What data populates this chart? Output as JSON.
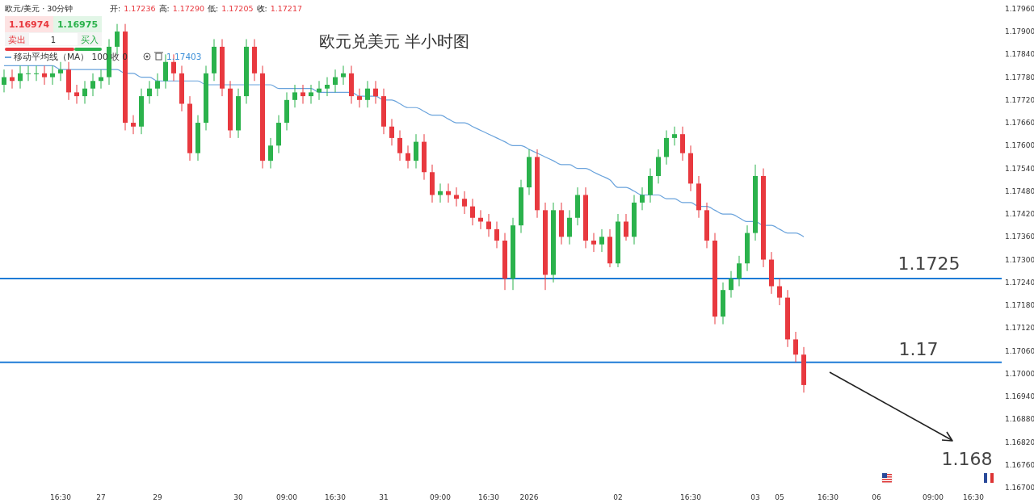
{
  "chart_data": {
    "type": "candlestick",
    "title": "欧元兑美元 半小时图",
    "categories": [
      null,
      null,
      null,
      null,
      null,
      null,
      null,
      "16:30",
      null,
      null,
      null,
      null,
      "27",
      null,
      null,
      null,
      null,
      null,
      null,
      "29",
      null,
      null,
      null,
      null,
      null,
      null,
      null,
      null,
      null,
      "30",
      null,
      null,
      null,
      null,
      null,
      "09:00",
      null,
      null,
      null,
      null,
      null,
      "16:30",
      null,
      null,
      null,
      null,
      null,
      "31",
      null,
      null,
      null,
      null,
      null,
      null,
      "09:00",
      null,
      null,
      null,
      null,
      null,
      "16:30",
      null,
      null,
      null,
      null,
      "2026",
      null,
      null,
      null,
      null,
      null,
      null,
      null,
      null,
      null,
      null,
      "02",
      null,
      null,
      null,
      null,
      null,
      null,
      null,
      null,
      "16:30",
      null,
      null,
      null,
      null,
      null,
      null,
      null,
      "03",
      null,
      null,
      "05",
      null,
      null,
      null,
      null,
      null,
      "16:30",
      null,
      null,
      null,
      null,
      null,
      "06",
      null,
      null,
      null,
      null,
      null,
      null,
      "09:00",
      null,
      null,
      null,
      null,
      "16:30",
      null,
      null,
      null
    ],
    "ohlc": [
      [
        1.1776,
        1.178,
        1.1774,
        1.1778
      ],
      [
        1.1778,
        1.178,
        1.1775,
        1.1777
      ],
      [
        1.1777,
        1.1781,
        1.1775,
        1.1779
      ],
      [
        1.1779,
        1.1781,
        1.1777,
        1.1779
      ],
      [
        1.1779,
        1.1781,
        1.1777,
        1.1779
      ],
      [
        1.1779,
        1.1781,
        1.1776,
        1.1778
      ],
      [
        1.1778,
        1.1781,
        1.1776,
        1.1779
      ],
      [
        1.1779,
        1.1782,
        1.1777,
        1.178
      ],
      [
        1.178,
        1.1782,
        1.1772,
        1.1774
      ],
      [
        1.1774,
        1.1776,
        1.1771,
        1.1773
      ],
      [
        1.1773,
        1.1777,
        1.1771,
        1.1775
      ],
      [
        1.1775,
        1.1779,
        1.1773,
        1.1777
      ],
      [
        1.1777,
        1.178,
        1.1775,
        1.1778
      ],
      [
        1.1778,
        1.1788,
        1.1776,
        1.1786
      ],
      [
        1.1786,
        1.1792,
        1.1784,
        1.179
      ],
      [
        1.179,
        1.1792,
        1.1764,
        1.1766
      ],
      [
        1.1766,
        1.1768,
        1.1763,
        1.1765
      ],
      [
        1.1765,
        1.1775,
        1.1763,
        1.1773
      ],
      [
        1.1773,
        1.1777,
        1.1771,
        1.1775
      ],
      [
        1.1775,
        1.1779,
        1.1773,
        1.1777
      ],
      [
        1.1777,
        1.1784,
        1.1775,
        1.1782
      ],
      [
        1.1782,
        1.1784,
        1.1777,
        1.1779
      ],
      [
        1.1779,
        1.1781,
        1.1769,
        1.1771
      ],
      [
        1.1771,
        1.1773,
        1.1756,
        1.1758
      ],
      [
        1.1758,
        1.1768,
        1.1756,
        1.1766
      ],
      [
        1.1766,
        1.1781,
        1.1764,
        1.1779
      ],
      [
        1.1779,
        1.1788,
        1.1777,
        1.1786
      ],
      [
        1.1786,
        1.1788,
        1.1773,
        1.1775
      ],
      [
        1.1775,
        1.1777,
        1.1762,
        1.1764
      ],
      [
        1.1764,
        1.1775,
        1.1762,
        1.1773
      ],
      [
        1.1773,
        1.1788,
        1.1771,
        1.1786
      ],
      [
        1.1786,
        1.1788,
        1.1777,
        1.1779
      ],
      [
        1.1779,
        1.1781,
        1.1754,
        1.1756
      ],
      [
        1.1756,
        1.1762,
        1.1754,
        1.176
      ],
      [
        1.176,
        1.1768,
        1.1758,
        1.1766
      ],
      [
        1.1766,
        1.1774,
        1.1764,
        1.1772
      ],
      [
        1.1772,
        1.1776,
        1.177,
        1.1774
      ],
      [
        1.1774,
        1.1776,
        1.1771,
        1.1773
      ],
      [
        1.1773,
        1.1776,
        1.1771,
        1.1774
      ],
      [
        1.1774,
        1.1777,
        1.1772,
        1.1775
      ],
      [
        1.1775,
        1.1778,
        1.1773,
        1.1776
      ],
      [
        1.1776,
        1.178,
        1.1774,
        1.1778
      ],
      [
        1.1778,
        1.1781,
        1.1776,
        1.1779
      ],
      [
        1.1779,
        1.1781,
        1.1771,
        1.1773
      ],
      [
        1.1773,
        1.1775,
        1.177,
        1.1772
      ],
      [
        1.1772,
        1.1777,
        1.177,
        1.1775
      ],
      [
        1.1775,
        1.1777,
        1.1771,
        1.1773
      ],
      [
        1.1773,
        1.1775,
        1.1763,
        1.1765
      ],
      [
        1.1765,
        1.1767,
        1.176,
        1.1762
      ],
      [
        1.1762,
        1.1764,
        1.1756,
        1.1758
      ],
      [
        1.1758,
        1.176,
        1.1754,
        1.1756
      ],
      [
        1.1756,
        1.1763,
        1.1754,
        1.1761
      ],
      [
        1.1761,
        1.1763,
        1.1751,
        1.1753
      ],
      [
        1.1753,
        1.1755,
        1.1745,
        1.1747
      ],
      [
        1.1747,
        1.175,
        1.1745,
        1.1748
      ],
      [
        1.1748,
        1.175,
        1.1745,
        1.1747
      ],
      [
        1.1747,
        1.1749,
        1.1744,
        1.1746
      ],
      [
        1.1746,
        1.1748,
        1.1742,
        1.1744
      ],
      [
        1.1744,
        1.1746,
        1.1739,
        1.1741
      ],
      [
        1.1741,
        1.1743,
        1.1738,
        1.174
      ],
      [
        1.174,
        1.1742,
        1.1736,
        1.1738
      ],
      [
        1.1738,
        1.174,
        1.1733,
        1.1735
      ],
      [
        1.1735,
        1.1737,
        1.1722,
        1.1725
      ],
      [
        1.1725,
        1.1741,
        1.1722,
        1.1739
      ],
      [
        1.1739,
        1.1751,
        1.1737,
        1.1749
      ],
      [
        1.1749,
        1.1759,
        1.1747,
        1.1757
      ],
      [
        1.1757,
        1.1759,
        1.1741,
        1.1743
      ],
      [
        1.1743,
        1.1745,
        1.1722,
        1.1726
      ],
      [
        1.1726,
        1.1745,
        1.1724,
        1.1743
      ],
      [
        1.1743,
        1.1745,
        1.1734,
        1.1736
      ],
      [
        1.1736,
        1.1743,
        1.1734,
        1.1741
      ],
      [
        1.1741,
        1.1749,
        1.1739,
        1.1747
      ],
      [
        1.1747,
        1.1749,
        1.1733,
        1.1735
      ],
      [
        1.1735,
        1.1737,
        1.1732,
        1.1734
      ],
      [
        1.1734,
        1.1738,
        1.1732,
        1.1736
      ],
      [
        1.1736,
        1.1738,
        1.1728,
        1.1729
      ],
      [
        1.1729,
        1.1742,
        1.1728,
        1.174
      ],
      [
        1.174,
        1.1742,
        1.1735,
        1.1736
      ],
      [
        1.1736,
        1.1747,
        1.1734,
        1.1745
      ],
      [
        1.1745,
        1.1749,
        1.1743,
        1.1747
      ],
      [
        1.1747,
        1.1754,
        1.1745,
        1.1752
      ],
      [
        1.1752,
        1.1759,
        1.175,
        1.1757
      ],
      [
        1.1757,
        1.1764,
        1.1755,
        1.1762
      ],
      [
        1.1762,
        1.1765,
        1.176,
        1.1763
      ],
      [
        1.1763,
        1.1765,
        1.1756,
        1.1758
      ],
      [
        1.1758,
        1.176,
        1.1748,
        1.175
      ],
      [
        1.175,
        1.1752,
        1.1741,
        1.1743
      ],
      [
        1.1743,
        1.1745,
        1.1733,
        1.1735
      ],
      [
        1.1735,
        1.1737,
        1.1713,
        1.1715
      ],
      [
        1.1715,
        1.1724,
        1.1713,
        1.1722
      ],
      [
        1.1722,
        1.1727,
        1.172,
        1.1725
      ],
      [
        1.1725,
        1.1731,
        1.1723,
        1.1729
      ],
      [
        1.1729,
        1.1739,
        1.1727,
        1.1737
      ],
      [
        1.1737,
        1.1755,
        1.1735,
        1.1752
      ],
      [
        1.1752,
        1.1754,
        1.1728,
        1.173
      ],
      [
        1.173,
        1.1732,
        1.1721,
        1.1723
      ],
      [
        1.1723,
        1.1725,
        1.1718,
        1.172
      ],
      [
        1.172,
        1.1722,
        1.1707,
        1.1709
      ],
      [
        1.1709,
        1.1711,
        1.1703,
        1.1705
      ],
      [
        1.1705,
        1.1707,
        1.1695,
        1.1697
      ],
      null,
      null,
      null,
      null,
      null,
      null,
      null,
      null,
      null,
      null,
      null,
      null,
      null,
      null,
      null,
      null,
      null,
      null,
      null,
      null,
      null,
      null,
      null,
      null
    ],
    "series": [
      {
        "type": "line",
        "name": "移动平均线（MA） 100 收 0",
        "color": "#6aa3dc",
        "values": [
          1.1781,
          1.1781,
          1.1781,
          1.1781,
          1.1781,
          1.1781,
          1.1781,
          1.178,
          1.178,
          1.178,
          1.178,
          1.178,
          1.178,
          1.178,
          1.178,
          1.1779,
          1.1779,
          1.1778,
          1.1778,
          1.1777,
          1.1777,
          1.1777,
          1.1777,
          1.1777,
          1.1777,
          1.1776,
          1.1776,
          1.1776,
          1.1776,
          1.1776,
          1.1776,
          1.1776,
          1.1776,
          1.1776,
          1.1775,
          1.1775,
          1.1775,
          1.1775,
          1.1775,
          1.1774,
          1.1774,
          1.1774,
          1.1774,
          1.1774,
          1.1773,
          1.1773,
          1.1773,
          1.1772,
          1.1772,
          1.1771,
          1.177,
          1.177,
          1.1769,
          1.1768,
          1.1768,
          1.1767,
          1.1766,
          1.1766,
          1.1765,
          1.1764,
          1.1763,
          1.1762,
          1.1761,
          1.176,
          1.176,
          1.1759,
          1.1758,
          1.1757,
          1.1756,
          1.1755,
          1.1755,
          1.1754,
          1.1754,
          1.1753,
          1.1752,
          1.1751,
          1.1749,
          1.1749,
          1.1748,
          1.1747,
          1.1747,
          1.1747,
          1.1746,
          1.1746,
          1.1745,
          1.1745,
          1.1744,
          1.1744,
          1.1743,
          1.1742,
          1.1742,
          1.1741,
          1.174,
          1.174,
          1.1739,
          1.1739,
          1.1738,
          1.1737,
          1.1737,
          1.1736,
          null,
          null,
          null,
          null,
          null,
          null,
          null,
          null,
          null,
          null,
          null,
          null,
          null,
          null,
          null,
          null,
          null,
          null,
          null,
          null,
          null,
          null,
          null,
          null
        ]
      }
    ],
    "ylim": [
      1.167,
      1.17983
    ],
    "yticks": [
      {
        "value": 1.167,
        "label": "1.16700"
      },
      {
        "value": 1.1676,
        "label": "1.16760"
      },
      {
        "value": 1.1682,
        "label": "1.16820"
      },
      {
        "value": 1.1688,
        "label": "1.16880"
      },
      {
        "value": 1.1694,
        "label": "1.16940"
      },
      {
        "value": 1.17,
        "label": "1.17000"
      },
      {
        "value": 1.1706,
        "label": "1.17060"
      },
      {
        "value": 1.1712,
        "label": "1.17120"
      },
      {
        "value": 1.1718,
        "label": "1.17180"
      },
      {
        "value": 1.1724,
        "label": "1.17240"
      },
      {
        "value": 1.173,
        "label": "1.17300"
      },
      {
        "value": 1.1736,
        "label": "1.17360"
      },
      {
        "value": 1.1742,
        "label": "1.17420"
      },
      {
        "value": 1.1748,
        "label": "1.17480"
      },
      {
        "value": 1.1754,
        "label": "1.17540"
      },
      {
        "value": 1.176,
        "label": "1.17600"
      },
      {
        "value": 1.1766,
        "label": "1.17660"
      },
      {
        "value": 1.1772,
        "label": "1.17720"
      },
      {
        "value": 1.1778,
        "label": "1.17780"
      },
      {
        "value": 1.1784,
        "label": "1.17840"
      },
      {
        "value": 1.179,
        "label": "1.17900"
      },
      {
        "value": 1.1796,
        "label": "1.17960"
      }
    ],
    "ref_lines": [
      {
        "axis": "y",
        "value": 1.1725,
        "label": "1.1725",
        "color": "#1e7bd6"
      },
      {
        "axis": "y",
        "value": 1.1703,
        "label": "1.17",
        "color": "#1e7bd6"
      }
    ],
    "legend": "top left",
    "annotations": [
      "欧元/美元 · 30分钟",
      "开: 1.17236 高: 1.17290 低: 1.17205 收: 1.17217",
      "1.16974",
      "卖出",
      "1",
      "1.16975",
      "买入",
      "1.17403",
      "1.168"
    ]
  }
}
